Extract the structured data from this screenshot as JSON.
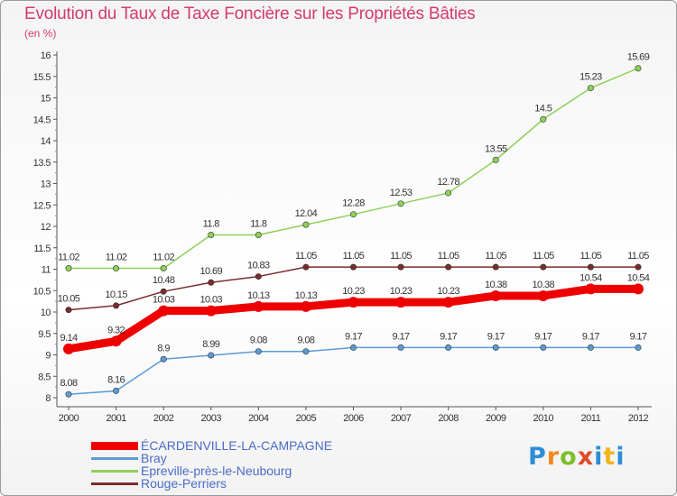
{
  "header": {
    "title": "Evolution du Taux de Taxe Foncière sur les Propriétés Bâties",
    "unit": "(en %)"
  },
  "logo": {
    "text": "Proxiti"
  },
  "colors": {
    "title": "#d33a6f",
    "axis_text": "#333333",
    "legend_text": "#4b6bc7"
  },
  "chart_data": {
    "type": "line",
    "title": "Evolution du Taux de Taxe Foncière sur les Propriétés Bâties",
    "subtitle": "(en %)",
    "xlabel": "",
    "ylabel": "",
    "ylim": [
      8,
      16
    ],
    "yticks": [
      "8",
      "8.5",
      "9",
      "9.5",
      "10",
      "10.5",
      "11",
      "11.5",
      "12",
      "12.5",
      "13",
      "13.5",
      "14",
      "14.5",
      "15",
      "15.5",
      "16"
    ],
    "x": [
      "2000",
      "2001",
      "2002",
      "2003",
      "2004",
      "2005",
      "2006",
      "2007",
      "2008",
      "2009",
      "2010",
      "2011",
      "2012"
    ],
    "grid": false,
    "legend_position": "bottom-left",
    "series": [
      {
        "name": "Epreville-près-le-Neubourg",
        "color": "#8ed05a",
        "values": [
          11.02,
          11.02,
          11.02,
          11.8,
          11.8,
          12.04,
          12.28,
          12.53,
          12.78,
          13.55,
          14.5,
          15.23,
          15.69
        ],
        "labels": [
          "11.02",
          "11.02",
          "11.02",
          "11.8",
          "11.8",
          "12.04",
          "12.28",
          "12.53",
          "12.78",
          "13.55",
          "14.5",
          "15.23",
          "15.69"
        ]
      },
      {
        "name": "Rouge-Perriers",
        "color": "#7a2c2c",
        "values": [
          10.05,
          10.15,
          10.48,
          10.69,
          10.83,
          11.05,
          11.05,
          11.05,
          11.05,
          11.05,
          11.05,
          11.05,
          11.05
        ],
        "labels": [
          "10.05",
          "10.15",
          "10.48",
          "10.69",
          "10.83",
          "11.05",
          "11.05",
          "11.05",
          "11.05",
          "11.05",
          "11.05",
          "11.05",
          "11.05"
        ]
      },
      {
        "name": "ÉCARDENVILLE-LA-CAMPAGNE",
        "color": "#ee0000",
        "values": [
          9.14,
          9.32,
          10.03,
          10.03,
          10.13,
          10.13,
          10.23,
          10.23,
          10.23,
          10.38,
          10.38,
          10.54,
          10.54
        ],
        "labels": [
          "9.14",
          "9.32",
          "10.03",
          "10.03",
          "10.13",
          "10.13",
          "10.23",
          "10.23",
          "10.23",
          "10.38",
          "10.38",
          "10.54",
          "10.54"
        ]
      },
      {
        "name": "Bray",
        "color": "#5b9bd5",
        "values": [
          8.08,
          8.16,
          8.9,
          8.99,
          9.08,
          9.08,
          9.17,
          9.17,
          9.17,
          9.17,
          9.17,
          9.17,
          9.17
        ],
        "labels": [
          "8.08",
          "8.16",
          "8.9",
          "8.99",
          "9.08",
          "9.08",
          "9.17",
          "9.17",
          "9.17",
          "9.17",
          "9.17",
          "9.17",
          "9.17"
        ]
      }
    ],
    "legend_order": [
      "ÉCARDENVILLE-LA-CAMPAGNE",
      "Bray",
      "Epreville-près-le-Neubourg",
      "Rouge-Perriers"
    ]
  }
}
